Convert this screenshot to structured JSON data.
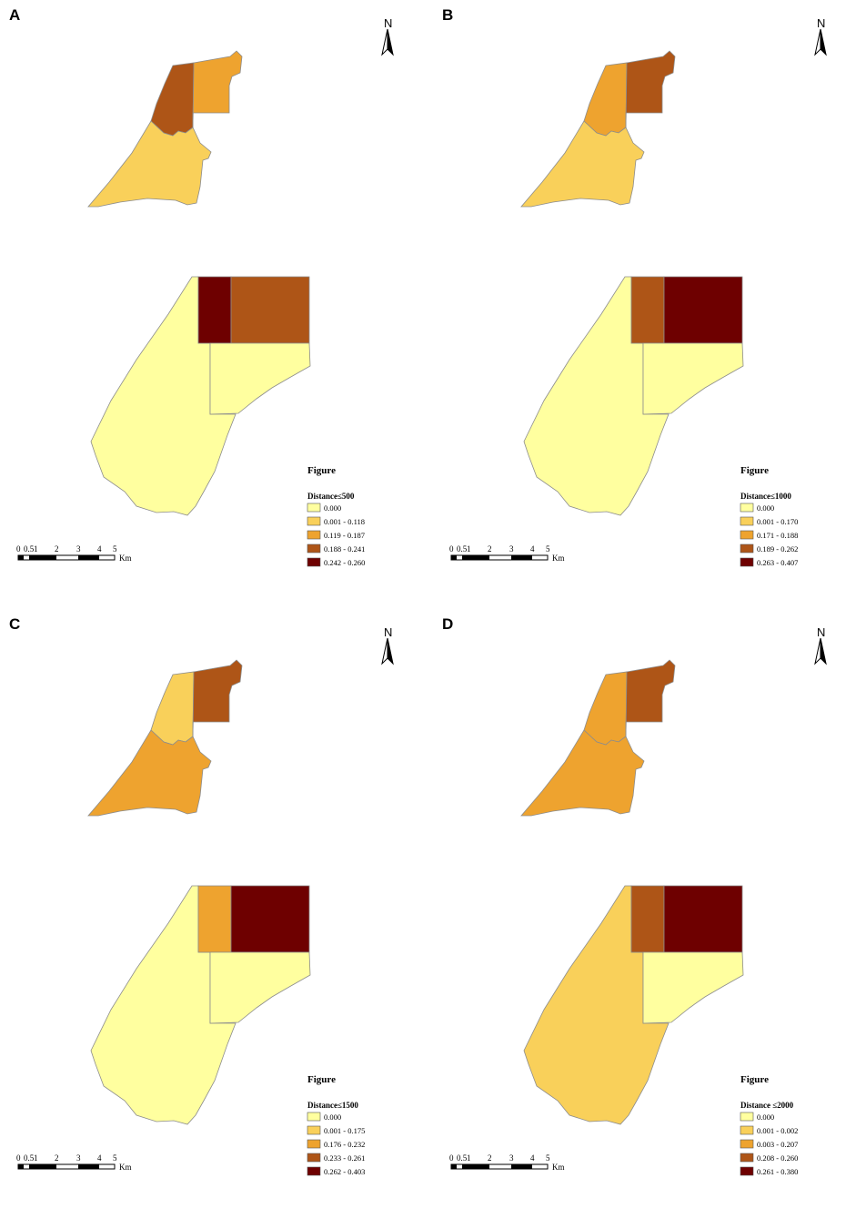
{
  "figure_heading": "Figure",
  "scale": {
    "ticks": [
      "0",
      "0.5",
      "1",
      "2",
      "3",
      "4",
      "5"
    ],
    "unit": "Km"
  },
  "north_letter": "N",
  "colors": [
    "#ffff9f",
    "#f9d05a",
    "#eea32f",
    "#ae5517",
    "#6e0000"
  ],
  "panels": [
    {
      "label": "A",
      "legend_title": "Distance≤500",
      "legend": [
        "0.000",
        "0.001 - 0.118",
        "0.119 - 0.187",
        "0.188 - 0.241",
        "0.242 - 0.260"
      ],
      "classes": {
        "top_left": 3,
        "top_right": 2,
        "top_lower": 1,
        "bot_left": 0,
        "bot_dark_a": 4,
        "bot_dark_b": 3,
        "bot_lower": 0
      }
    },
    {
      "label": "B",
      "legend_title": "Distance≤1000",
      "legend": [
        "0.000",
        "0.001 - 0.170",
        "0.171 - 0.188",
        "0.189 - 0.262",
        "0.263 - 0.407"
      ],
      "classes": {
        "top_left": 2,
        "top_right": 3,
        "top_lower": 1,
        "bot_left": 0,
        "bot_dark_a": 3,
        "bot_dark_b": 4,
        "bot_lower": 0
      }
    },
    {
      "label": "C",
      "legend_title": "Distance≤1500",
      "legend": [
        "0.000",
        "0.001 - 0.175",
        "0.176 - 0.232",
        "0.233 - 0.261",
        "0.262 - 0.403"
      ],
      "classes": {
        "top_left": 1,
        "top_right": 3,
        "top_lower": 2,
        "bot_left": 0,
        "bot_dark_a": 2,
        "bot_dark_b": 4,
        "bot_lower": 0
      }
    },
    {
      "label": "D",
      "legend_title": "Distance ≤2000",
      "legend": [
        "0.000",
        "0.001 - 0.002",
        "0.003 - 0.207",
        "0.208 - 0.260",
        "0.261 - 0.380"
      ],
      "classes": {
        "top_left": 2,
        "top_right": 3,
        "top_lower": 2,
        "bot_left": 1,
        "bot_dark_a": 3,
        "bot_dark_b": 4,
        "bot_lower": 0
      }
    }
  ]
}
